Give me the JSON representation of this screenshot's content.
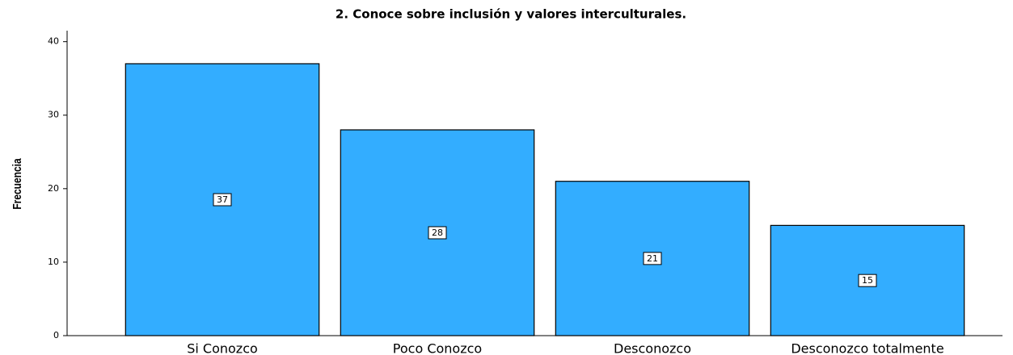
{
  "chart_data": {
    "type": "bar",
    "title": "2.  Conoce sobre inclusión y valores interculturales.",
    "y_label": "Frecuencia",
    "categories": [
      "Si Conozco",
      "Poco Conozco",
      "Desconozco",
      "Desconozco totalmente"
    ],
    "values": [
      37,
      28,
      21,
      15
    ],
    "color": "#33adff",
    "ylim": [
      0,
      41.5
    ],
    "yticks": [
      0,
      10,
      20,
      30,
      40
    ],
    "grid": false
  }
}
